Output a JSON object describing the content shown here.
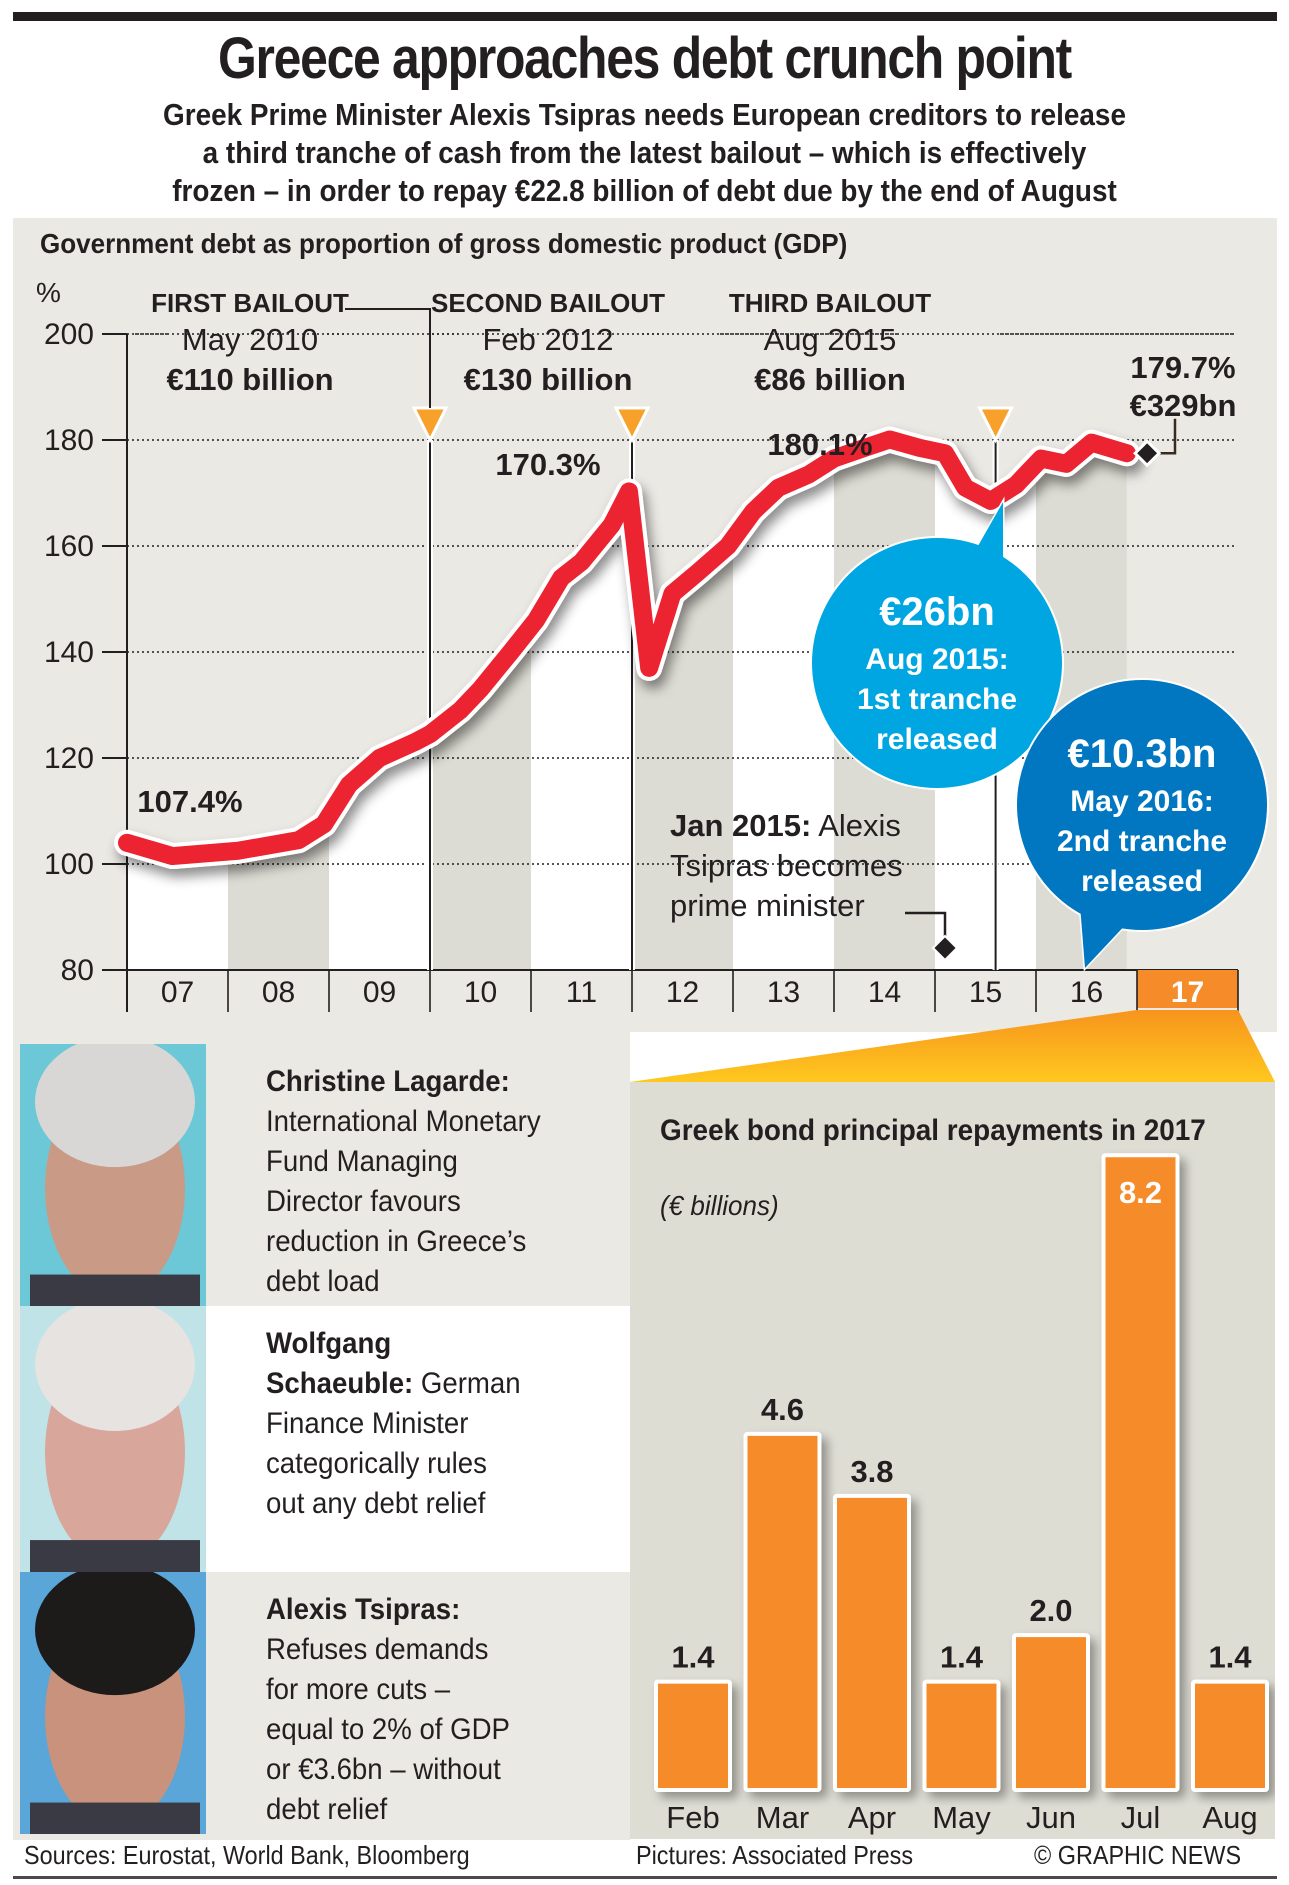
{
  "header": {
    "title": "Greece approaches debt crunch point",
    "standfirst": "Greek Prime Minister Alexis Tsipras needs European creditors to release\na third tranche of cash from the latest bailout – which is effectively\nfrozen – in order to repay €22.8 billion of debt due by the end of August"
  },
  "colors": {
    "line": "#ec2330",
    "panel_bg": "#ebe9e4",
    "stripe": "#dddcd4",
    "bailout_marker": "#f7a12b",
    "bubble_1": "#00a6e2",
    "bubble_2": "#0077c0",
    "bar": "#f68b2a",
    "highlight_year": "#f68b2a",
    "text": "#231f20"
  },
  "chart_data": [
    {
      "type": "line",
      "title": "Government debt as proportion of gross domestic product (GDP)",
      "ylabel": "%",
      "xlabel": "",
      "ylim": [
        80,
        200
      ],
      "yticks": [
        80,
        100,
        120,
        140,
        160,
        180,
        200
      ],
      "grid": true,
      "x_tick_labels": [
        "07",
        "08",
        "09",
        "10",
        "11",
        "12",
        "13",
        "14",
        "15",
        "16",
        "17"
      ],
      "x_range": [
        2007,
        2018
      ],
      "highlighted_tick": "17",
      "series": [
        {
          "name": "Debt to GDP (%)",
          "x": [
            2007.0,
            2007.45,
            2008.1,
            2008.7,
            2008.95,
            2009.2,
            2009.5,
            2009.85,
            2010.0,
            2010.3,
            2010.5,
            2010.8,
            2011.05,
            2011.3,
            2011.5,
            2011.8,
            2011.97,
            2012.17,
            2012.4,
            2012.65,
            2012.95,
            2013.2,
            2013.45,
            2013.75,
            2014.0,
            2014.3,
            2014.55,
            2014.85,
            2015.1,
            2015.3,
            2015.55,
            2015.8,
            2016.05,
            2016.3,
            2016.55,
            2016.9
          ],
          "values": [
            104.0,
            101.5,
            102.5,
            104.5,
            107.5,
            115.0,
            120.0,
            123.0,
            124.5,
            129.0,
            133.0,
            140.0,
            146.0,
            154.0,
            157.0,
            164.0,
            170.3,
            137.0,
            151.0,
            155.0,
            160.0,
            166.5,
            171.0,
            173.5,
            176.5,
            178.5,
            180.1,
            178.5,
            177.5,
            171.0,
            168.5,
            171.5,
            176.5,
            175.5,
            179.5,
            177.5
          ]
        }
      ],
      "data_labels": [
        {
          "text": "107.4%",
          "x": 2007.5,
          "value": 107.4
        },
        {
          "text": "170.3%",
          "x": 2011.5,
          "value": 170.3
        },
        {
          "text": "180.1%",
          "x": 2013.9,
          "value": 180.1
        },
        {
          "text": "179.7%",
          "x": 2017.0,
          "value": 179.7,
          "sub": "€329bn"
        }
      ],
      "bailouts": [
        {
          "label": "FIRST BAILOUT",
          "date": "May 2010",
          "amount": "€110 billion",
          "x": 2010.0
        },
        {
          "label": "SECOND BAILOUT",
          "date": "Feb 2012",
          "amount": "€130 billion",
          "x": 2012.0
        },
        {
          "label": "THIRD BAILOUT",
          "date": "Aug 2015",
          "amount": "€86 billion",
          "x": 2015.6
        }
      ],
      "annotations": [
        {
          "bold": "Jan 2015:",
          "text": " Alexis\nTsipras becomes\nprime minister",
          "x": 2015.0
        },
        {
          "amount": "€26bn",
          "text": "Aug 2015:\n1st tranche\nreleased",
          "x": 2015.6
        },
        {
          "amount": "€10.3bn",
          "text": "May 2016:\n2nd tranche\nreleased",
          "x": 2016.4
        }
      ]
    },
    {
      "type": "bar",
      "title": "Greek bond principal repayments in 2017",
      "subtitle": "(€ billions)",
      "xlabel": "",
      "ylabel": "€ billions",
      "categories": [
        "Feb",
        "Mar",
        "Apr",
        "May",
        "Jun",
        "Jul",
        "Aug"
      ],
      "values": [
        1.4,
        4.6,
        3.8,
        1.4,
        2.0,
        8.2,
        1.4
      ],
      "value_labels": [
        "1.4",
        "4.6",
        "3.8",
        "1.4",
        "2.0",
        "8.2",
        "1.4"
      ],
      "ylim": [
        0,
        8.5
      ],
      "grid": false
    }
  ],
  "people": [
    {
      "name": "Christine Lagarde:",
      "text": "International Monetary\nFund Managing\nDirector favours\nreduction in Greece’s\ndebt load",
      "photo": "portrait-lagarde"
    },
    {
      "name": "Wolfgang\nSchaeuble:",
      "text": " German\nFinance Minister\ncategorically rules\nout any debt relief",
      "photo": "portrait-schaeuble"
    },
    {
      "name": "Alexis Tsipras:",
      "text": "Refuses demands\nfor more cuts –\nequal to 2% of GDP\nor €3.6bn – without\ndebt relief",
      "photo": "portrait-tsipras"
    }
  ],
  "footer": {
    "sources": "Sources: Eurostat, World Bank, Bloomberg",
    "pictures": "Pictures: Associated Press",
    "credit": "© GRAPHIC NEWS"
  }
}
